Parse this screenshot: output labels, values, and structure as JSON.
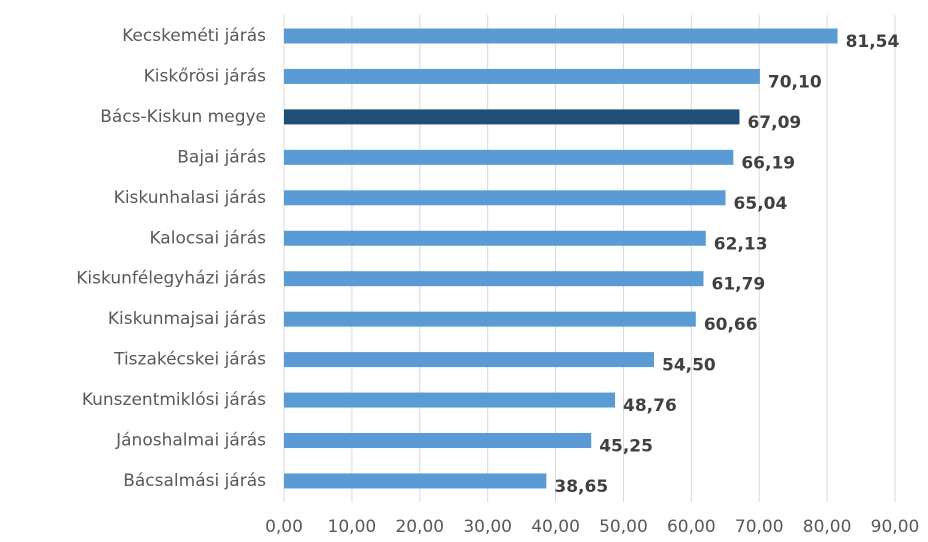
{
  "chart_data": {
    "type": "hbar",
    "categories": [
      "Kecskeméti járás",
      "Kiskőrösi járás",
      "Bács-Kiskun megye",
      "Bajai járás",
      "Kiskunhalasi járás",
      "Kalocsai járás",
      "Kiskunfélegyházi járás",
      "Kiskunmajsai járás",
      "Tiszakécskei járás",
      "Kunszentmiklósi járás",
      "Jánoshalmai járás",
      "Bácsalmási járás"
    ],
    "values": [
      81.54,
      70.1,
      67.09,
      66.19,
      65.04,
      62.13,
      61.79,
      60.66,
      54.5,
      48.76,
      45.25,
      38.65
    ],
    "value_labels": [
      "81,54",
      "70,10",
      "67,09",
      "66,19",
      "65,04",
      "62,13",
      "61,79",
      "60,66",
      "54,50",
      "48,76",
      "45,25",
      "38,65"
    ],
    "colors": [
      "#5b9bd5",
      "#5b9bd5",
      "#1f4e79",
      "#5b9bd5",
      "#5b9bd5",
      "#5b9bd5",
      "#5b9bd5",
      "#5b9bd5",
      "#5b9bd5",
      "#5b9bd5",
      "#5b9bd5",
      "#5b9bd5"
    ],
    "xlim": [
      0,
      90
    ],
    "xticks": [
      {
        "value": 0,
        "label": "0,00"
      },
      {
        "value": 10,
        "label": "10,00"
      },
      {
        "value": 20,
        "label": "20,00"
      },
      {
        "value": 30,
        "label": "30,00"
      },
      {
        "value": 40,
        "label": "40,00"
      },
      {
        "value": 50,
        "label": "50,00"
      },
      {
        "value": 60,
        "label": "60,00"
      },
      {
        "value": 70,
        "label": "70,00"
      },
      {
        "value": 80,
        "label": "80,00"
      },
      {
        "value": 90,
        "label": "90,00"
      }
    ],
    "grid": true
  }
}
